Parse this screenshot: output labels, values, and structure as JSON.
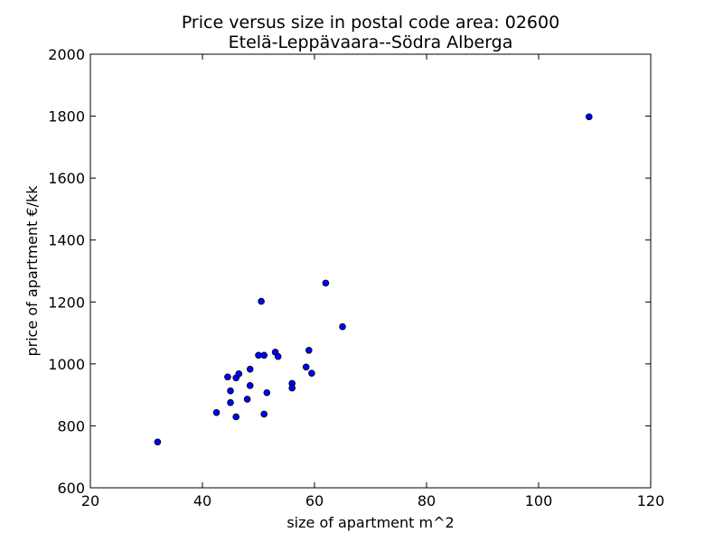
{
  "chart_data": {
    "type": "scatter",
    "title": "Price versus size in postal code area: 02600",
    "subtitle": "Etelä-Leppävaara--Södra Alberga",
    "xlabel": "size of apartment m^2",
    "ylabel": "price of apartment €/kk",
    "xlim": [
      20,
      120
    ],
    "ylim": [
      600,
      2000
    ],
    "xticks": [
      20,
      40,
      60,
      80,
      100,
      120
    ],
    "yticks": [
      600,
      800,
      1000,
      1200,
      1400,
      1600,
      1800,
      2000
    ],
    "grid": false,
    "colors": {
      "point_fill": "#0000ff",
      "point_edge": "#000000"
    },
    "points": [
      {
        "x": 32,
        "y": 748
      },
      {
        "x": 42.5,
        "y": 843
      },
      {
        "x": 44.5,
        "y": 958
      },
      {
        "x": 45,
        "y": 913
      },
      {
        "x": 45,
        "y": 875
      },
      {
        "x": 46,
        "y": 955
      },
      {
        "x": 46,
        "y": 829
      },
      {
        "x": 46.5,
        "y": 968
      },
      {
        "x": 48,
        "y": 886
      },
      {
        "x": 48.5,
        "y": 930
      },
      {
        "x": 48.5,
        "y": 983
      },
      {
        "x": 50,
        "y": 1028
      },
      {
        "x": 50.5,
        "y": 1202
      },
      {
        "x": 51,
        "y": 838
      },
      {
        "x": 51,
        "y": 1028
      },
      {
        "x": 51.5,
        "y": 907
      },
      {
        "x": 53,
        "y": 1038
      },
      {
        "x": 53.5,
        "y": 1024
      },
      {
        "x": 56,
        "y": 937
      },
      {
        "x": 56,
        "y": 922
      },
      {
        "x": 58.5,
        "y": 990
      },
      {
        "x": 59,
        "y": 1044
      },
      {
        "x": 59.5,
        "y": 970
      },
      {
        "x": 62,
        "y": 1261
      },
      {
        "x": 65,
        "y": 1120
      },
      {
        "x": 109,
        "y": 1798
      }
    ]
  }
}
